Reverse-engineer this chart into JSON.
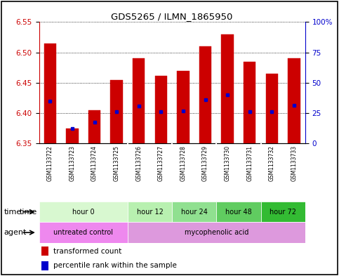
{
  "title": "GDS5265 / ILMN_1865950",
  "samples": [
    "GSM1133722",
    "GSM1133723",
    "GSM1133724",
    "GSM1133725",
    "GSM1133726",
    "GSM1133727",
    "GSM1133728",
    "GSM1133729",
    "GSM1133730",
    "GSM1133731",
    "GSM1133732",
    "GSM1133733"
  ],
  "bar_bottom": 6.35,
  "bar_tops": [
    6.515,
    6.375,
    6.405,
    6.455,
    6.49,
    6.462,
    6.47,
    6.51,
    6.53,
    6.485,
    6.465,
    6.49
  ],
  "percentile_values": [
    6.42,
    6.375,
    6.385,
    6.402,
    6.412,
    6.403,
    6.404,
    6.422,
    6.43,
    6.402,
    6.403,
    6.413
  ],
  "ylim_left": [
    6.35,
    6.55
  ],
  "ylim_right": [
    0,
    100
  ],
  "yticks_left": [
    6.35,
    6.4,
    6.45,
    6.5,
    6.55
  ],
  "yticks_right": [
    0,
    25,
    50,
    75,
    100
  ],
  "ytick_labels_right": [
    "0",
    "25",
    "50",
    "75",
    "100%"
  ],
  "bar_color": "#cc0000",
  "percentile_color": "#0000cc",
  "time_groups": [
    {
      "label": "hour 0",
      "start": 0,
      "end": 4,
      "color": "#d8f8d0"
    },
    {
      "label": "hour 12",
      "start": 4,
      "end": 6,
      "color": "#b8f0b0"
    },
    {
      "label": "hour 24",
      "start": 6,
      "end": 8,
      "color": "#90e090"
    },
    {
      "label": "hour 48",
      "start": 8,
      "end": 10,
      "color": "#60cc60"
    },
    {
      "label": "hour 72",
      "start": 10,
      "end": 12,
      "color": "#33bb33"
    }
  ],
  "agent_groups": [
    {
      "label": "untreated control",
      "start": 0,
      "end": 4,
      "color": "#ee88ee"
    },
    {
      "label": "mycophenolic acid",
      "start": 4,
      "end": 12,
      "color": "#dd99dd"
    }
  ],
  "legend_items": [
    {
      "color": "#cc0000",
      "label": "transformed count"
    },
    {
      "color": "#0000cc",
      "label": "percentile rank within the sample"
    }
  ],
  "bar_width": 0.55,
  "bg_color": "#ffffff",
  "sample_bg_color": "#c8c8c8"
}
